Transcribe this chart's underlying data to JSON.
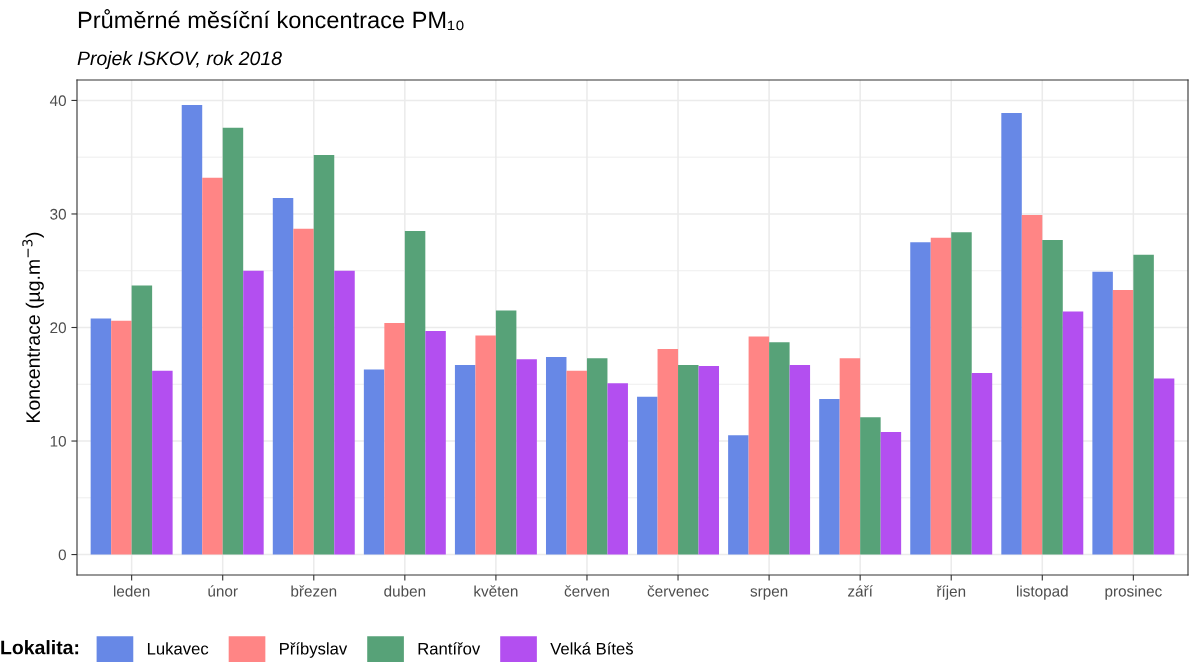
{
  "chart_data": {
    "type": "bar",
    "title": "Průměrné měsíční koncentrace PM₁₀",
    "subtitle": "Projek ISKOV, rok 2018",
    "ylabel": "Koncentrace (µg.m$^{−3}$)",
    "legend_title": "Lokalita:",
    "categories": [
      "leden",
      "únor",
      "březen",
      "duben",
      "květen",
      "červen",
      "červenec",
      "srpen",
      "září",
      "říjen",
      "listopad",
      "prosinec"
    ],
    "series": [
      {
        "name": "Lukavec",
        "color": "#6788e6",
        "values": [
          20.8,
          39.6,
          31.4,
          16.3,
          16.7,
          17.4,
          13.9,
          10.5,
          13.7,
          27.5,
          38.9,
          24.9
        ]
      },
      {
        "name": "Příbyslav",
        "color": "#ff8585",
        "values": [
          20.6,
          33.2,
          28.7,
          20.4,
          19.3,
          16.2,
          18.1,
          19.2,
          17.3,
          27.9,
          29.9,
          23.3
        ]
      },
      {
        "name": "Rantířov",
        "color": "#57a278",
        "values": [
          23.7,
          37.6,
          35.2,
          28.5,
          21.5,
          17.3,
          16.7,
          18.7,
          12.1,
          28.4,
          27.7,
          26.4
        ]
      },
      {
        "name": "Velká Bíteš",
        "color": "#b34ff0",
        "values": [
          16.2,
          25.0,
          25.0,
          19.7,
          17.2,
          15.1,
          16.6,
          16.7,
          10.8,
          16.0,
          21.4,
          15.5
        ]
      }
    ],
    "ylim": [
      -1.8,
      41.8
    ],
    "yticks": [
      0,
      {
        "value": 5,
        "label": null
      },
      10,
      {
        "value": 15,
        "label": null
      },
      20,
      {
        "value": 25,
        "label": null
      },
      30,
      {
        "value": 35,
        "label": null
      },
      40
    ],
    "grid": true,
    "legend": "bottom"
  }
}
